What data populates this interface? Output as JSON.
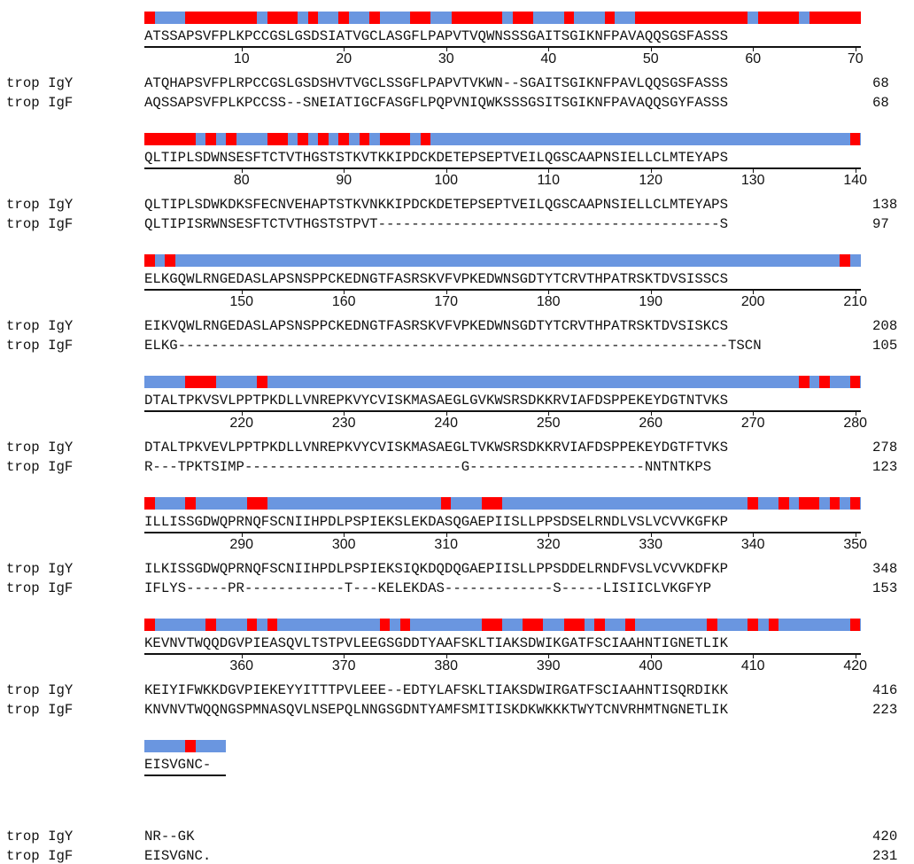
{
  "colors": {
    "high": "#ff0000",
    "low": "#6a96e0",
    "text": "#111111"
  },
  "rows": [
    "trop IgY",
    "trop IgF"
  ],
  "blocks": [
    {
      "consensus": "ATSSAPSVFPLKPCCGSLGSDSIATVGCLASGFLPAPVTVQWNSSSGAITSGIKNFPAVAQQSGSFASSS",
      "ticks": [
        "10",
        "20",
        "30",
        "40",
        "50",
        "60",
        "70"
      ],
      "red_runs": [
        [
          0,
          1
        ],
        [
          4,
          11
        ],
        [
          12,
          15
        ],
        [
          16,
          17
        ],
        [
          19,
          20
        ],
        [
          22,
          23
        ],
        [
          26,
          28
        ],
        [
          30,
          35
        ],
        [
          36,
          38
        ],
        [
          41,
          42
        ],
        [
          45,
          46
        ],
        [
          48,
          59
        ],
        [
          60,
          64
        ],
        [
          65,
          70
        ]
      ],
      "seqs": [
        {
          "seq": "ATQHAPSVFPLRPCCGSLGSDSHVTVGCLSSGFLPAPVTVKWN--SGAITSGIKNFPAVLQQSGSFASSS",
          "num": "68"
        },
        {
          "seq": "AQSSAPSVFPLKPCCSS--SNEIATIGCFASGFLPQPVNIQWKSSSGSITSGIKNFPAVAQQSGYFASSS",
          "num": "68"
        }
      ]
    },
    {
      "consensus": "QLTIPLSDWNSESFTCTVTHGSTSTKVTKKIPDCKDETEPSEPTVEILQGSCAAPNSIELLCLMTEYAPS",
      "ticks": [
        "80",
        "90",
        "100",
        "110",
        "120",
        "130",
        "140"
      ],
      "red_runs": [
        [
          0,
          5
        ],
        [
          6,
          7
        ],
        [
          8,
          9
        ],
        [
          12,
          14
        ],
        [
          15,
          16
        ],
        [
          17,
          18
        ],
        [
          19,
          20
        ],
        [
          21,
          22
        ],
        [
          23,
          26
        ],
        [
          27,
          28
        ],
        [
          69,
          70
        ]
      ],
      "seqs": [
        {
          "seq": "QLTIPLSDWKDKSFECNVEHAPTSTKVNKKIPDCKDETEPSEPTVEILQGSCAAPNSIELLCLMTEYAPS",
          "num": "138"
        },
        {
          "seq": "QLTIPISRWNSESFTCTVTHGSTSTPVT-----------------------------------------S",
          "num": "97"
        }
      ]
    },
    {
      "consensus": "ELKGQWLRNGEDASLAPSNSPPCKEDNGTFASRSKVFVPKEDWNSGDTYTCRVTHPATRSKTDVSISSCS",
      "ticks": [
        "150",
        "160",
        "170",
        "180",
        "190",
        "200",
        "210"
      ],
      "red_runs": [
        [
          0,
          1
        ],
        [
          2,
          3
        ],
        [
          68,
          69
        ]
      ],
      "seqs": [
        {
          "seq": "EIKVQWLRNGEDASLAPSNSPPCKEDNGTFASRSKVFVPKEDWNSGDTYTCRVTHPATRSKTDVSISKCS",
          "num": "208"
        },
        {
          "seq": "ELKG------------------------------------------------------------------TSCN",
          "num": "105"
        }
      ]
    },
    {
      "consensus": "DTALTPKVSVLPPTPKDLLVNREPKVYCVISKMASAEGLGVKWSRSDKKRVIAFDSPPEKEYDGTNTVKS",
      "ticks": [
        "220",
        "230",
        "240",
        "250",
        "260",
        "270",
        "280"
      ],
      "red_runs": [
        [
          4,
          7
        ],
        [
          11,
          12
        ],
        [
          64,
          65
        ],
        [
          66,
          67
        ],
        [
          69,
          70
        ]
      ],
      "seqs": [
        {
          "seq": "DTALTPKVEVLPPTPKDLLVNREPKVYCVISKMASAEGLTVKWSRSDKKRVIAFDSPPEKEYDGTFTVKS",
          "num": "278"
        },
        {
          "seq": "R---TPKTSIMP--------------------------G---------------------NNTNTKPS",
          "num": "123"
        }
      ]
    },
    {
      "consensus": "ILLISSGDWQPRNQFSCNIIHPDLPSPIEKSLEKDASQGAEPIISLLPPSDSELRNDLVSLVCVVKGFKP",
      "ticks": [
        "290",
        "300",
        "310",
        "320",
        "330",
        "340",
        "350"
      ],
      "red_runs": [
        [
          0,
          1
        ],
        [
          4,
          5
        ],
        [
          10,
          12
        ],
        [
          29,
          30
        ],
        [
          33,
          35
        ],
        [
          59,
          60
        ],
        [
          62,
          63
        ],
        [
          64,
          66
        ],
        [
          67,
          68
        ],
        [
          69,
          70
        ]
      ],
      "seqs": [
        {
          "seq": "ILKISSGDWQPRNQFSCNIIHPDLPSPIEKSIQKDQDQGAEPIISLLPPSDDELRNDFVSLVCVVKDFKP",
          "num": "348"
        },
        {
          "seq": "IFLYS-----PR------------T---KELEKDAS-------------S-----LISIICLVKGFYP",
          "num": "153"
        }
      ]
    },
    {
      "consensus": "KEVNVTWQQDGVPIEASQVLTSTPVLEEGSGDDTYAAFSKLTIAKSDWIKGATFSCIAAHNTIGNETLIK",
      "ticks": [
        "360",
        "370",
        "380",
        "390",
        "400",
        "410",
        "420"
      ],
      "red_runs": [
        [
          0,
          1
        ],
        [
          6,
          7
        ],
        [
          10,
          11
        ],
        [
          12,
          13
        ],
        [
          23,
          24
        ],
        [
          25,
          26
        ],
        [
          33,
          35
        ],
        [
          37,
          39
        ],
        [
          41,
          43
        ],
        [
          44,
          45
        ],
        [
          47,
          48
        ],
        [
          55,
          56
        ],
        [
          59,
          60
        ],
        [
          61,
          62
        ],
        [
          69,
          70
        ]
      ],
      "seqs": [
        {
          "seq": "KEIYIFWKKDGVPIEKEYYITTTPVLEEE--EDTYLAFSKLTIAKSDWIRGATFSCIAAHNTISQRDIKK",
          "num": "416"
        },
        {
          "seq": "KNVNVTWQQNGSPMNASQVLNSEPQLNNGSGDNTYAMFSMITISKDKWKKKTWYTCNVRHMTNGNETLIK",
          "num": "223"
        }
      ]
    },
    {
      "consensus": "EISVGNC-",
      "ticks": [],
      "red_runs": [
        [
          4,
          5
        ]
      ],
      "seqs": [
        {
          "seq": "NR--GK",
          "num": "420"
        },
        {
          "seq": "EISVGNC.",
          "num": "231"
        }
      ]
    }
  ]
}
